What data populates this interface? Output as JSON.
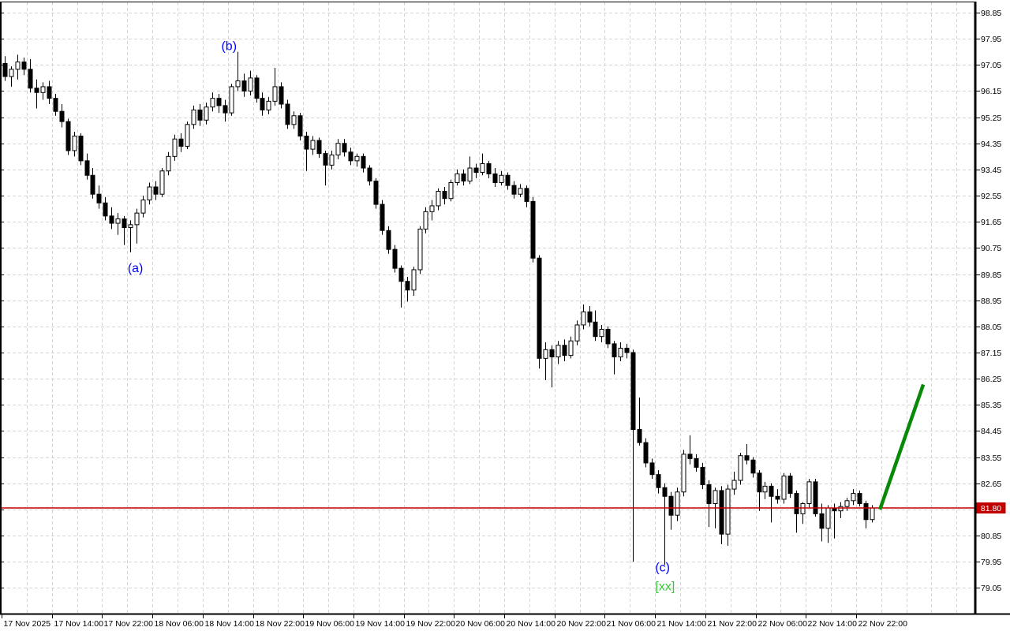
{
  "chart_data": {
    "type": "candlestick",
    "title": "",
    "x_labels": [
      "17 Nov 2025",
      "17 Nov 14:00",
      "17 Nov 22:00",
      "18 Nov 06:00",
      "18 Nov 14:00",
      "18 Nov 22:00",
      "19 Nov 06:00",
      "19 Nov 14:00",
      "19 Nov 22:00",
      "20 Nov 06:00",
      "20 Nov 14:00",
      "20 Nov 22:00",
      "21 Nov 06:00",
      "21 Nov 14:00",
      "21 Nov 22:00",
      "22 Nov 06:00",
      "22 Nov 14:00",
      "22 Nov 22:00"
    ],
    "y_ticks": [
      98.85,
      97.95,
      97.05,
      96.15,
      95.25,
      94.35,
      93.45,
      92.55,
      91.65,
      90.75,
      89.85,
      88.95,
      88.05,
      87.15,
      86.25,
      85.35,
      84.45,
      83.55,
      82.65,
      81.75,
      80.85,
      79.95,
      79.05
    ],
    "ylim": [
      78.6,
      99.1
    ],
    "grid": true,
    "legend_position": "none",
    "candles_ohlc": [
      [
        97.1,
        97.35,
        96.5,
        96.65
      ],
      [
        96.65,
        97.0,
        96.3,
        96.9
      ],
      [
        96.9,
        97.4,
        96.55,
        97.15
      ],
      [
        97.15,
        97.3,
        96.7,
        96.9
      ],
      [
        96.9,
        97.25,
        96.1,
        96.25
      ],
      [
        96.25,
        96.55,
        95.55,
        96.1
      ],
      [
        96.1,
        96.45,
        95.85,
        96.3
      ],
      [
        96.3,
        96.5,
        95.7,
        95.9
      ],
      [
        95.9,
        96.05,
        95.3,
        95.45
      ],
      [
        95.45,
        95.7,
        94.9,
        95.1
      ],
      [
        95.1,
        95.2,
        93.95,
        94.1
      ],
      [
        94.1,
        94.75,
        93.9,
        94.6
      ],
      [
        94.6,
        94.7,
        93.6,
        93.75
      ],
      [
        93.75,
        94.0,
        93.1,
        93.25
      ],
      [
        93.25,
        93.5,
        92.45,
        92.6
      ],
      [
        92.6,
        92.9,
        92.1,
        92.3
      ],
      [
        92.3,
        92.5,
        91.7,
        91.85
      ],
      [
        91.85,
        92.15,
        91.4,
        91.6
      ],
      [
        91.6,
        91.95,
        91.2,
        91.75
      ],
      [
        91.75,
        91.85,
        90.85,
        91.45
      ],
      [
        91.45,
        91.7,
        90.6,
        91.55
      ],
      [
        91.55,
        92.1,
        90.9,
        91.95
      ],
      [
        91.95,
        92.55,
        91.8,
        92.4
      ],
      [
        92.4,
        93.0,
        92.25,
        92.85
      ],
      [
        92.85,
        93.05,
        92.4,
        92.6
      ],
      [
        92.6,
        93.5,
        92.5,
        93.4
      ],
      [
        93.4,
        94.05,
        93.25,
        93.9
      ],
      [
        93.9,
        94.65,
        93.75,
        94.5
      ],
      [
        94.5,
        94.7,
        94.05,
        94.25
      ],
      [
        94.25,
        95.1,
        94.15,
        95.0
      ],
      [
        95.0,
        95.65,
        94.85,
        95.5
      ],
      [
        95.5,
        95.7,
        94.95,
        95.15
      ],
      [
        95.15,
        95.75,
        95.0,
        95.6
      ],
      [
        95.6,
        96.1,
        95.45,
        95.9
      ],
      [
        95.9,
        96.05,
        95.4,
        95.65
      ],
      [
        95.65,
        95.85,
        95.1,
        95.4
      ],
      [
        95.4,
        96.4,
        95.3,
        96.3
      ],
      [
        96.3,
        97.5,
        96.15,
        96.5
      ],
      [
        96.5,
        96.75,
        95.95,
        96.15
      ],
      [
        96.15,
        96.85,
        96.0,
        96.6
      ],
      [
        96.6,
        96.7,
        95.75,
        95.9
      ],
      [
        95.9,
        96.1,
        95.3,
        95.5
      ],
      [
        95.5,
        95.95,
        95.35,
        95.8
      ],
      [
        95.8,
        96.95,
        95.65,
        96.3
      ],
      [
        96.3,
        96.45,
        95.55,
        95.7
      ],
      [
        95.7,
        95.85,
        94.85,
        95.0
      ],
      [
        95.0,
        95.45,
        94.85,
        95.3
      ],
      [
        95.3,
        95.4,
        94.45,
        94.6
      ],
      [
        94.6,
        94.75,
        93.4,
        94.15
      ],
      [
        94.15,
        94.6,
        93.95,
        94.45
      ],
      [
        94.45,
        94.55,
        93.85,
        94.0
      ],
      [
        94.0,
        94.1,
        92.9,
        93.6
      ],
      [
        93.6,
        94.1,
        93.45,
        93.95
      ],
      [
        93.95,
        94.5,
        93.8,
        94.35
      ],
      [
        94.35,
        94.5,
        93.9,
        94.05
      ],
      [
        94.05,
        94.2,
        93.6,
        93.75
      ],
      [
        93.75,
        94.0,
        93.55,
        93.9
      ],
      [
        93.9,
        94.0,
        93.35,
        93.5
      ],
      [
        93.5,
        93.6,
        92.9,
        93.05
      ],
      [
        93.05,
        93.15,
        92.1,
        92.25
      ],
      [
        92.25,
        92.4,
        91.2,
        91.35
      ],
      [
        91.35,
        91.5,
        90.55,
        90.7
      ],
      [
        90.7,
        90.85,
        89.9,
        90.05
      ],
      [
        90.05,
        90.15,
        88.7,
        89.6
      ],
      [
        89.6,
        89.75,
        88.9,
        89.3
      ],
      [
        89.3,
        90.1,
        89.1,
        90.0
      ],
      [
        90.0,
        91.5,
        89.85,
        91.4
      ],
      [
        91.4,
        92.15,
        91.25,
        92.0
      ],
      [
        92.0,
        92.4,
        91.7,
        92.2
      ],
      [
        92.2,
        92.8,
        92.05,
        92.7
      ],
      [
        92.7,
        92.85,
        92.25,
        92.45
      ],
      [
        92.45,
        93.1,
        92.35,
        93.0
      ],
      [
        93.0,
        93.45,
        92.9,
        93.3
      ],
      [
        93.3,
        93.45,
        92.9,
        93.05
      ],
      [
        93.05,
        93.9,
        92.95,
        93.5
      ],
      [
        93.5,
        93.65,
        93.15,
        93.35
      ],
      [
        93.35,
        94.0,
        93.25,
        93.65
      ],
      [
        93.65,
        93.75,
        93.15,
        93.3
      ],
      [
        93.3,
        93.5,
        92.85,
        93.0
      ],
      [
        93.0,
        93.4,
        92.9,
        93.25
      ],
      [
        93.25,
        93.35,
        92.75,
        92.9
      ],
      [
        92.9,
        93.05,
        92.45,
        92.6
      ],
      [
        92.6,
        92.95,
        92.5,
        92.8
      ],
      [
        92.8,
        92.9,
        92.15,
        92.35
      ],
      [
        92.35,
        92.5,
        90.25,
        90.4
      ],
      [
        90.4,
        90.5,
        86.6,
        86.95
      ],
      [
        86.95,
        87.5,
        86.2,
        87.25
      ],
      [
        87.25,
        87.4,
        85.95,
        87.0
      ],
      [
        87.0,
        87.55,
        86.75,
        87.4
      ],
      [
        87.4,
        87.6,
        86.85,
        87.05
      ],
      [
        87.05,
        87.7,
        86.95,
        87.55
      ],
      [
        87.55,
        88.25,
        87.4,
        88.1
      ],
      [
        88.1,
        88.8,
        87.95,
        88.55
      ],
      [
        88.55,
        88.75,
        88.05,
        88.2
      ],
      [
        88.2,
        88.6,
        87.55,
        87.7
      ],
      [
        87.7,
        88.1,
        87.5,
        87.95
      ],
      [
        87.95,
        88.05,
        87.3,
        87.45
      ],
      [
        87.45,
        87.55,
        86.4,
        87.0
      ],
      [
        87.0,
        87.5,
        86.85,
        87.3
      ],
      [
        87.3,
        87.45,
        86.95,
        87.15
      ],
      [
        87.15,
        87.25,
        79.95,
        84.5
      ],
      [
        84.5,
        85.6,
        83.95,
        84.05
      ],
      [
        84.05,
        84.2,
        83.2,
        83.35
      ],
      [
        83.35,
        83.5,
        82.8,
        82.95
      ],
      [
        82.95,
        83.1,
        82.3,
        82.5
      ],
      [
        82.5,
        82.65,
        79.85,
        82.2
      ],
      [
        82.2,
        82.35,
        81.05,
        81.55
      ],
      [
        81.55,
        82.5,
        81.35,
        82.35
      ],
      [
        82.35,
        83.8,
        82.2,
        83.65
      ],
      [
        83.65,
        84.3,
        83.3,
        83.5
      ],
      [
        83.5,
        83.65,
        83.05,
        83.2
      ],
      [
        83.2,
        83.35,
        82.45,
        82.6
      ],
      [
        82.6,
        82.75,
        81.15,
        81.95
      ],
      [
        81.95,
        82.5,
        81.1,
        82.4
      ],
      [
        82.4,
        82.55,
        80.55,
        80.9
      ],
      [
        80.9,
        82.6,
        80.5,
        82.45
      ],
      [
        82.45,
        83.05,
        82.25,
        82.75
      ],
      [
        82.75,
        83.7,
        82.6,
        83.6
      ],
      [
        83.6,
        84.0,
        83.3,
        83.45
      ],
      [
        83.45,
        83.55,
        82.85,
        83.0
      ],
      [
        83.0,
        83.1,
        81.7,
        82.35
      ],
      [
        82.35,
        82.7,
        82.1,
        82.55
      ],
      [
        82.55,
        82.65,
        81.3,
        82.2
      ],
      [
        82.2,
        82.45,
        81.95,
        82.1
      ],
      [
        82.1,
        83.0,
        81.95,
        82.9
      ],
      [
        82.9,
        83.0,
        82.15,
        82.3
      ],
      [
        82.3,
        82.4,
        80.95,
        81.6
      ],
      [
        81.6,
        82.0,
        81.25,
        81.95
      ],
      [
        81.95,
        82.8,
        81.8,
        82.7
      ],
      [
        82.7,
        82.8,
        81.5,
        81.6
      ],
      [
        81.6,
        81.95,
        80.65,
        81.1
      ],
      [
        81.1,
        81.9,
        80.6,
        81.8
      ],
      [
        81.8,
        81.95,
        80.75,
        81.7
      ],
      [
        81.7,
        82.0,
        81.45,
        81.85
      ],
      [
        81.85,
        82.15,
        81.7,
        82.05
      ],
      [
        82.05,
        82.45,
        81.9,
        82.3
      ],
      [
        82.3,
        82.4,
        81.85,
        81.95
      ],
      [
        81.95,
        82.05,
        81.1,
        81.4
      ],
      [
        81.4,
        81.9,
        81.3,
        81.8
      ]
    ],
    "price_line": {
      "price": 81.8,
      "label": "81.80"
    },
    "trend_line": {
      "from_bar": 139.3,
      "from_price": 81.75,
      "to_bar": 146.2,
      "to_price": 86.05
    },
    "annotations": [
      {
        "name": "wave-label-a",
        "text": "(a)",
        "bar": 20.8,
        "price": 90.05,
        "color": "#0000FF"
      },
      {
        "name": "wave-label-b",
        "text": "(b)",
        "bar": 35.7,
        "price": 97.7,
        "color": "#0000FF"
      },
      {
        "name": "wave-label-c",
        "text": "(c)",
        "bar": 104.7,
        "price": 79.75,
        "color": "#0000FF"
      },
      {
        "name": "wave-label-xx",
        "text": "[xx]",
        "bar": 105.1,
        "price": 79.1,
        "color": "#33CC33"
      }
    ],
    "colors": {
      "background": "#FFFFFF",
      "grid": "#D4D4D4",
      "axis": "#000000",
      "candle_outline": "#000000",
      "bull_fill": "#FFFFFF",
      "bear_fill": "#000000",
      "price_line": "#C00000",
      "price_label_bg": "#C00000",
      "price_label_text": "#FFFFFF",
      "trend_line": "#088A08"
    }
  }
}
